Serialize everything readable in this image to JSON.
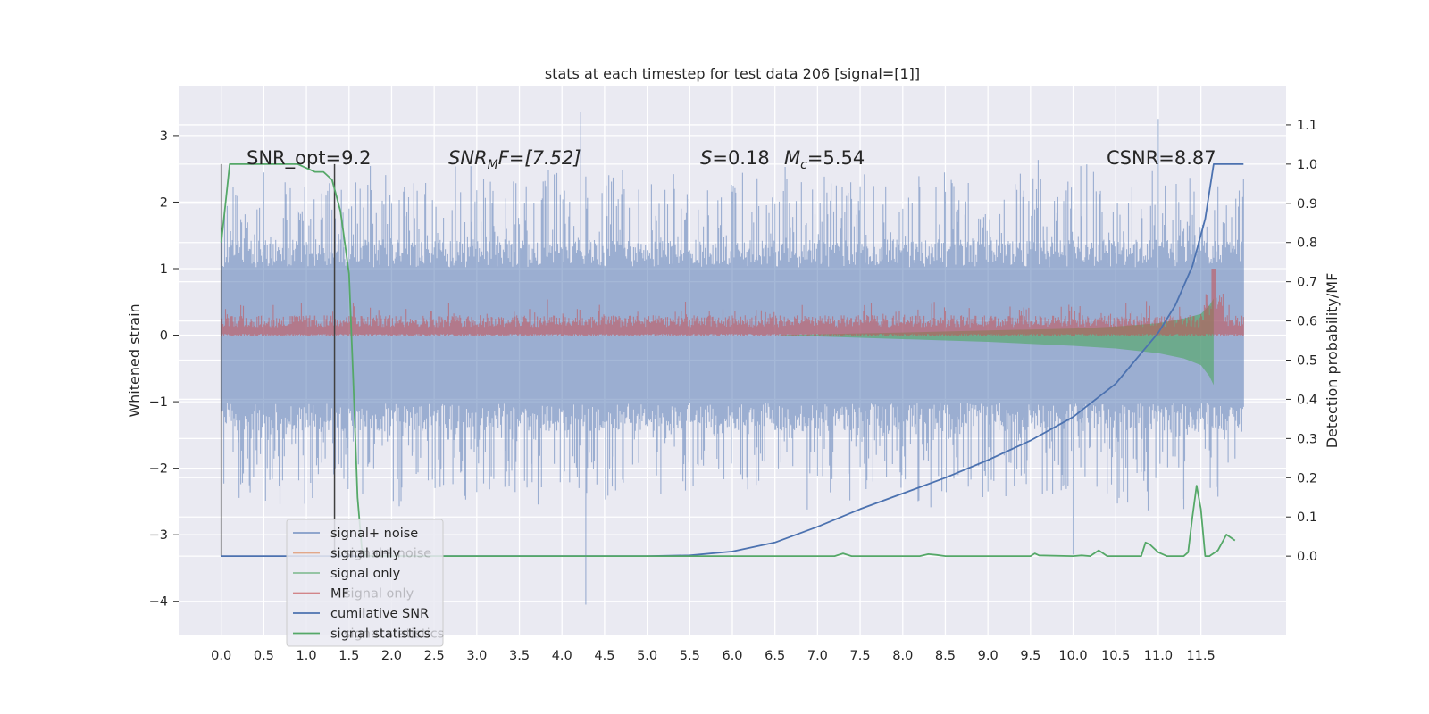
{
  "chart_data": {
    "type": "line",
    "title": "stats at each timestep for test data 206 [signal=[1]]",
    "ylabel": "Whitened strain",
    "ylabel_right": "Detection probability/MF",
    "xlim": [
      -0.5,
      12.5
    ],
    "ylim": [
      -4.5,
      3.75
    ],
    "ylim_right": [
      -0.2,
      1.2
    ],
    "x_ticks": [
      "0.0",
      "0.5",
      "1.0",
      "1.5",
      "2.0",
      "2.5",
      "3.0",
      "3.5",
      "4.0",
      "4.5",
      "5.0",
      "5.5",
      "6.0",
      "6.5",
      "7.0",
      "7.5",
      "8.0",
      "8.5",
      "9.0",
      "9.5",
      "10.0",
      "10.5",
      "11.0",
      "11.5"
    ],
    "y_ticks_left": [
      "3",
      "2",
      "1",
      "0",
      "−1",
      "−2",
      "−3",
      "−4"
    ],
    "y_ticks_right": [
      "1.1",
      "1.0",
      "0.9",
      "0.8",
      "0.7",
      "0.6",
      "0.5",
      "0.4",
      "0.3",
      "0.2",
      "0.1",
      "0.0"
    ],
    "grid": true,
    "legend_position": "lower-left",
    "colors": {
      "background": "#eaeaf2",
      "grid": "#ffffff",
      "signal_noise": "#4c72b0",
      "signal_only_orange": "#dd8452",
      "signal_only_green": "#55a868",
      "mf": "#c44e52",
      "cumulative_snr": "#4c72b0",
      "signal_statistics": "#55a868",
      "window_marker": "#404040"
    },
    "annotations": {
      "snr_opt": "SNR_opt=9.2",
      "snr_mf_prefix": "SNR",
      "snr_mf_sub": "M",
      "snr_mf_suffix": "F=[7.52]",
      "s_var": "S",
      "s_val": "=0.18",
      "mc_var": "M",
      "mc_sub": "c",
      "mc_val": "=5.54",
      "csnr": "CSNR=8.87"
    },
    "legend": [
      {
        "label": "signal+ noise",
        "color": "#4c72b0"
      },
      {
        "label": "signal only",
        "color": "#dd8452"
      },
      {
        "label": "signal only",
        "color": "#55a868"
      },
      {
        "label": "MF",
        "color": "#c44e52"
      },
      {
        "label": "cumilative SNR",
        "color": "#4c72b0"
      },
      {
        "label": "signal statistics",
        "color": "#55a868"
      }
    ],
    "legend_ghost_labels": [
      "signal+ noise",
      "signal only",
      "signal statistics"
    ],
    "series": [
      {
        "name": "signal+ noise",
        "axis": "left",
        "x_range": [
          0.0,
          12.0
        ],
        "band": {
          "upper": 1.2,
          "lower": -1.2,
          "spike_max": 3.35,
          "spike_min": -4.05
        }
      },
      {
        "name": "MF",
        "axis": "left",
        "x_range": [
          0.0,
          12.0
        ],
        "band": {
          "upper": 0.25,
          "lower": 0.0,
          "peak_at_x": 11.65,
          "peak_value": 1.0
        }
      },
      {
        "name": "signal only",
        "axis": "left",
        "x_range": [
          6.5,
          11.65
        ],
        "envelope": {
          "x": [
            6.5,
            8.0,
            9.0,
            10.0,
            10.5,
            11.0,
            11.3,
            11.5,
            11.6,
            11.65
          ],
          "lower": [
            0.0,
            -0.06,
            -0.1,
            -0.16,
            -0.2,
            -0.27,
            -0.35,
            -0.45,
            -0.62,
            -0.75
          ],
          "upper": [
            0.0,
            0.04,
            0.07,
            0.1,
            0.13,
            0.18,
            0.25,
            0.32,
            0.45,
            0.55
          ]
        }
      },
      {
        "name": "cumilative SNR",
        "axis": "right",
        "x": [
          0.0,
          5.0,
          5.5,
          6.0,
          6.5,
          7.0,
          7.5,
          8.0,
          8.5,
          9.0,
          9.5,
          10.0,
          10.5,
          11.0,
          11.2,
          11.4,
          11.55,
          11.65,
          12.0
        ],
        "values": [
          0.0,
          0.0,
          0.002,
          0.012,
          0.035,
          0.075,
          0.12,
          0.16,
          0.2,
          0.245,
          0.295,
          0.355,
          0.44,
          0.57,
          0.64,
          0.74,
          0.86,
          1.0,
          1.0
        ]
      },
      {
        "name": "signal statistics",
        "axis": "right",
        "x": [
          0.0,
          0.05,
          0.1,
          0.2,
          0.3,
          0.5,
          0.8,
          0.9,
          1.0,
          1.1,
          1.2,
          1.3,
          1.35,
          1.4,
          1.45,
          1.5,
          1.55,
          1.6,
          1.65,
          1.7,
          7.0,
          7.2,
          7.3,
          7.4,
          8.2,
          8.3,
          8.4,
          8.5,
          9.5,
          9.55,
          9.6,
          10.0,
          10.1,
          10.2,
          10.3,
          10.4,
          10.8,
          10.85,
          10.9,
          11.0,
          11.1,
          11.3,
          11.35,
          11.4,
          11.45,
          11.5,
          11.55,
          11.6,
          11.7,
          11.8,
          11.9
        ],
        "values": [
          0.8,
          0.9,
          1.0,
          1.0,
          1.0,
          1.0,
          1.0,
          1.0,
          0.99,
          0.98,
          0.98,
          0.96,
          0.92,
          0.88,
          0.8,
          0.72,
          0.45,
          0.15,
          0.02,
          0.0,
          0.0,
          0.0,
          0.007,
          0.0,
          0.0,
          0.005,
          0.003,
          0.0,
          0.0,
          0.007,
          0.002,
          0.0,
          0.002,
          0.0,
          0.015,
          0.0,
          0.0,
          0.035,
          0.03,
          0.01,
          0.0,
          0.0,
          0.01,
          0.1,
          0.18,
          0.12,
          0.0,
          0.0,
          0.015,
          0.055,
          0.04
        ]
      }
    ],
    "window_markers": [
      0.0,
      1.33
    ]
  }
}
